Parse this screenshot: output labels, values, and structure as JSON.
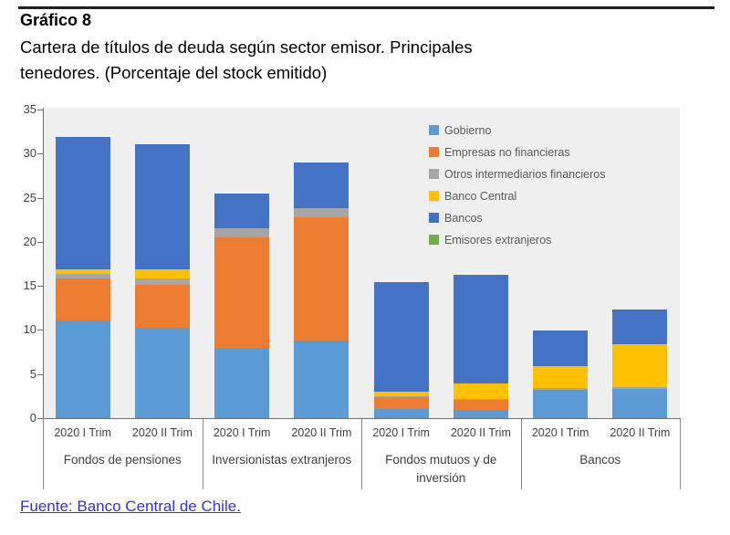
{
  "page": {
    "title": "Gráfico 8",
    "subtitle_line1": "Cartera de títulos de deuda según sector emisor. Principales",
    "subtitle_line2": "tenedores. (Porcentaje del stock emitido)",
    "source": "Fuente: Banco Central de Chile."
  },
  "colors": {
    "gobierno": "#5B9BD5",
    "empresas_no_financieras": "#ED7D31",
    "otros_intermediarios_financieros": "#A5A5A5",
    "banco_central": "#FFC000",
    "bancos": "#4472C4",
    "emisores_extranjeros": "#70AD47",
    "plot_background": "#EFEFEF",
    "axis": "#6E6E6E",
    "link": "#3232D8"
  },
  "chart_data": {
    "type": "bar",
    "stacked": true,
    "title": "Cartera de títulos de deuda según sector emisor. Principales tenedores. (Porcentaje del stock emitido)",
    "xlabel": "",
    "ylabel": "",
    "ylim": [
      0,
      35
    ],
    "yticks": [
      0,
      5,
      10,
      15,
      20,
      25,
      30,
      35
    ],
    "grid": false,
    "legend_position": "inside-top-right",
    "groups": [
      {
        "label": "Fondos de pensiones",
        "categories": [
          "2020 I Trim",
          "2020 II Trim"
        ]
      },
      {
        "label": "Inversionistas extranjeros",
        "categories": [
          "2020 I Trim",
          "2020 II Trim"
        ]
      },
      {
        "label": "Fondos mutuos y de\ninversión",
        "categories": [
          "2020 I Trim",
          "2020 II Trim"
        ]
      },
      {
        "label": "Bancos",
        "categories": [
          "2020 I Trim",
          "2020 II Trim"
        ]
      }
    ],
    "series": [
      {
        "name": "Gobierno",
        "color": "#5B9BD5",
        "values": [
          11.1,
          10.2,
          8.0,
          8.8,
          1.0,
          0.9,
          3.2,
          3.3
        ]
      },
      {
        "name": "Empresas no financieras",
        "color": "#ED7D31",
        "values": [
          4.7,
          4.9,
          12.5,
          14.0,
          1.4,
          1.2,
          0,
          0
        ]
      },
      {
        "name": "Otros intermediarios financieros",
        "color": "#A5A5A5",
        "values": [
          0.6,
          0.7,
          1.0,
          1.0,
          0.1,
          0.1,
          0.2,
          0.2
        ]
      },
      {
        "name": "Banco Central",
        "color": "#FFC000",
        "values": [
          0.5,
          1.1,
          0,
          0,
          0.5,
          1.7,
          2.5,
          4.9
        ]
      },
      {
        "name": "Bancos",
        "color": "#4472C4",
        "values": [
          15.0,
          14.2,
          4.0,
          5.2,
          12.4,
          12.4,
          4.0,
          3.9
        ]
      },
      {
        "name": "Emisores extranjeros",
        "color": "#70AD47",
        "values": [
          0,
          0,
          0,
          0,
          0,
          0,
          0,
          0
        ]
      }
    ],
    "bar_totals": [
      31.9,
      31.1,
      25.5,
      29.0,
      15.4,
      16.3,
      9.9,
      12.3
    ]
  }
}
